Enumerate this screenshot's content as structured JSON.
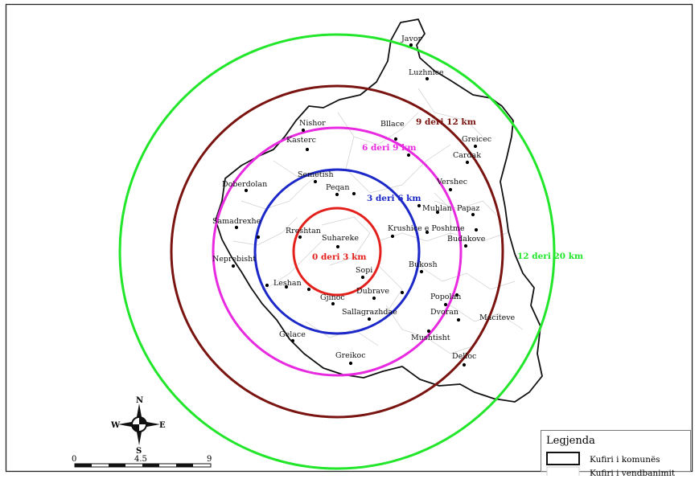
{
  "map": {
    "zones": [
      {
        "label": "0 deri 3 km",
        "color": "#e3201b"
      },
      {
        "label": "3 deri 6 km",
        "color": "#1c28c8"
      },
      {
        "label": "6 deri 9 km",
        "color": "#e82be0"
      },
      {
        "label": "9 deri 12 km",
        "color": "#7a1410"
      },
      {
        "label": "12 deri 20 km",
        "color": "#22e62a"
      }
    ],
    "places": [
      "Javor",
      "Luzhnice",
      "Nishor",
      "Bllace",
      "Greicec",
      "Kasterc",
      "Cardak",
      "Semetish",
      "Vershec",
      "Doberdolan",
      "Peqan",
      "Muhlan",
      "Papaz",
      "Samadrexhe",
      "Rreshtan",
      "Suhareke",
      "Krushice e Poshtme",
      "Budakove",
      "Neprebisht",
      "Bukosh",
      "Sopi",
      "Leshan",
      "Dubrave",
      "Popolan",
      "Gjinoc",
      "Dvoran",
      "Sallagrazhdae",
      "Maciteve",
      "Mushtisht",
      "Gelace",
      "Greikoc",
      "Delloc"
    ]
  },
  "legend": {
    "title": "Legjenda",
    "items": [
      "Kufiri i komunës",
      "Kufiri i vendbanimit"
    ]
  },
  "north_arrow": {
    "n": "N",
    "s": "S",
    "e": "E",
    "w": "W"
  },
  "scale_bar": {
    "ticks": [
      "0",
      "4.5",
      "9"
    ]
  }
}
